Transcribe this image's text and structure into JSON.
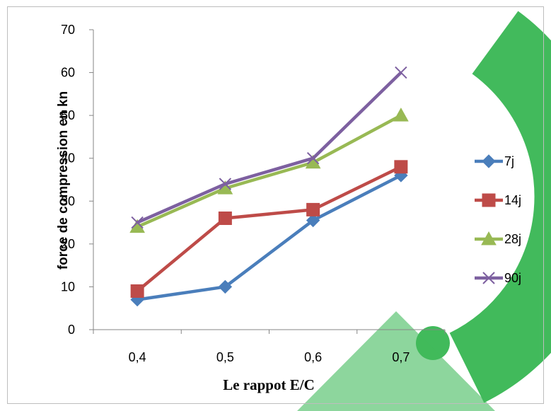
{
  "chart_data": {
    "type": "line",
    "categories": [
      "0,4",
      "0,5",
      "0,6",
      "0,7"
    ],
    "series": [
      {
        "name": "7j",
        "values": [
          7,
          10,
          25.5,
          36
        ],
        "color": "#4a7ebb",
        "marker": "diamond"
      },
      {
        "name": "14j",
        "values": [
          9,
          26,
          28,
          38
        ],
        "color": "#be4b48",
        "marker": "square"
      },
      {
        "name": "28j",
        "values": [
          24,
          33,
          39,
          50
        ],
        "color": "#98b954",
        "marker": "triangle"
      },
      {
        "name": "90j",
        "values": [
          25,
          34,
          40,
          60
        ],
        "color": "#7d60a0",
        "marker": "x"
      }
    ],
    "xlabel": "Le rappot E/C",
    "ylabel": "force de compression en kn",
    "ylim": [
      0,
      70
    ],
    "yticks": [
      0,
      10,
      20,
      30,
      40,
      50,
      60,
      70
    ],
    "grid": false,
    "legend": "right"
  },
  "watermark_color": "#2db34a"
}
